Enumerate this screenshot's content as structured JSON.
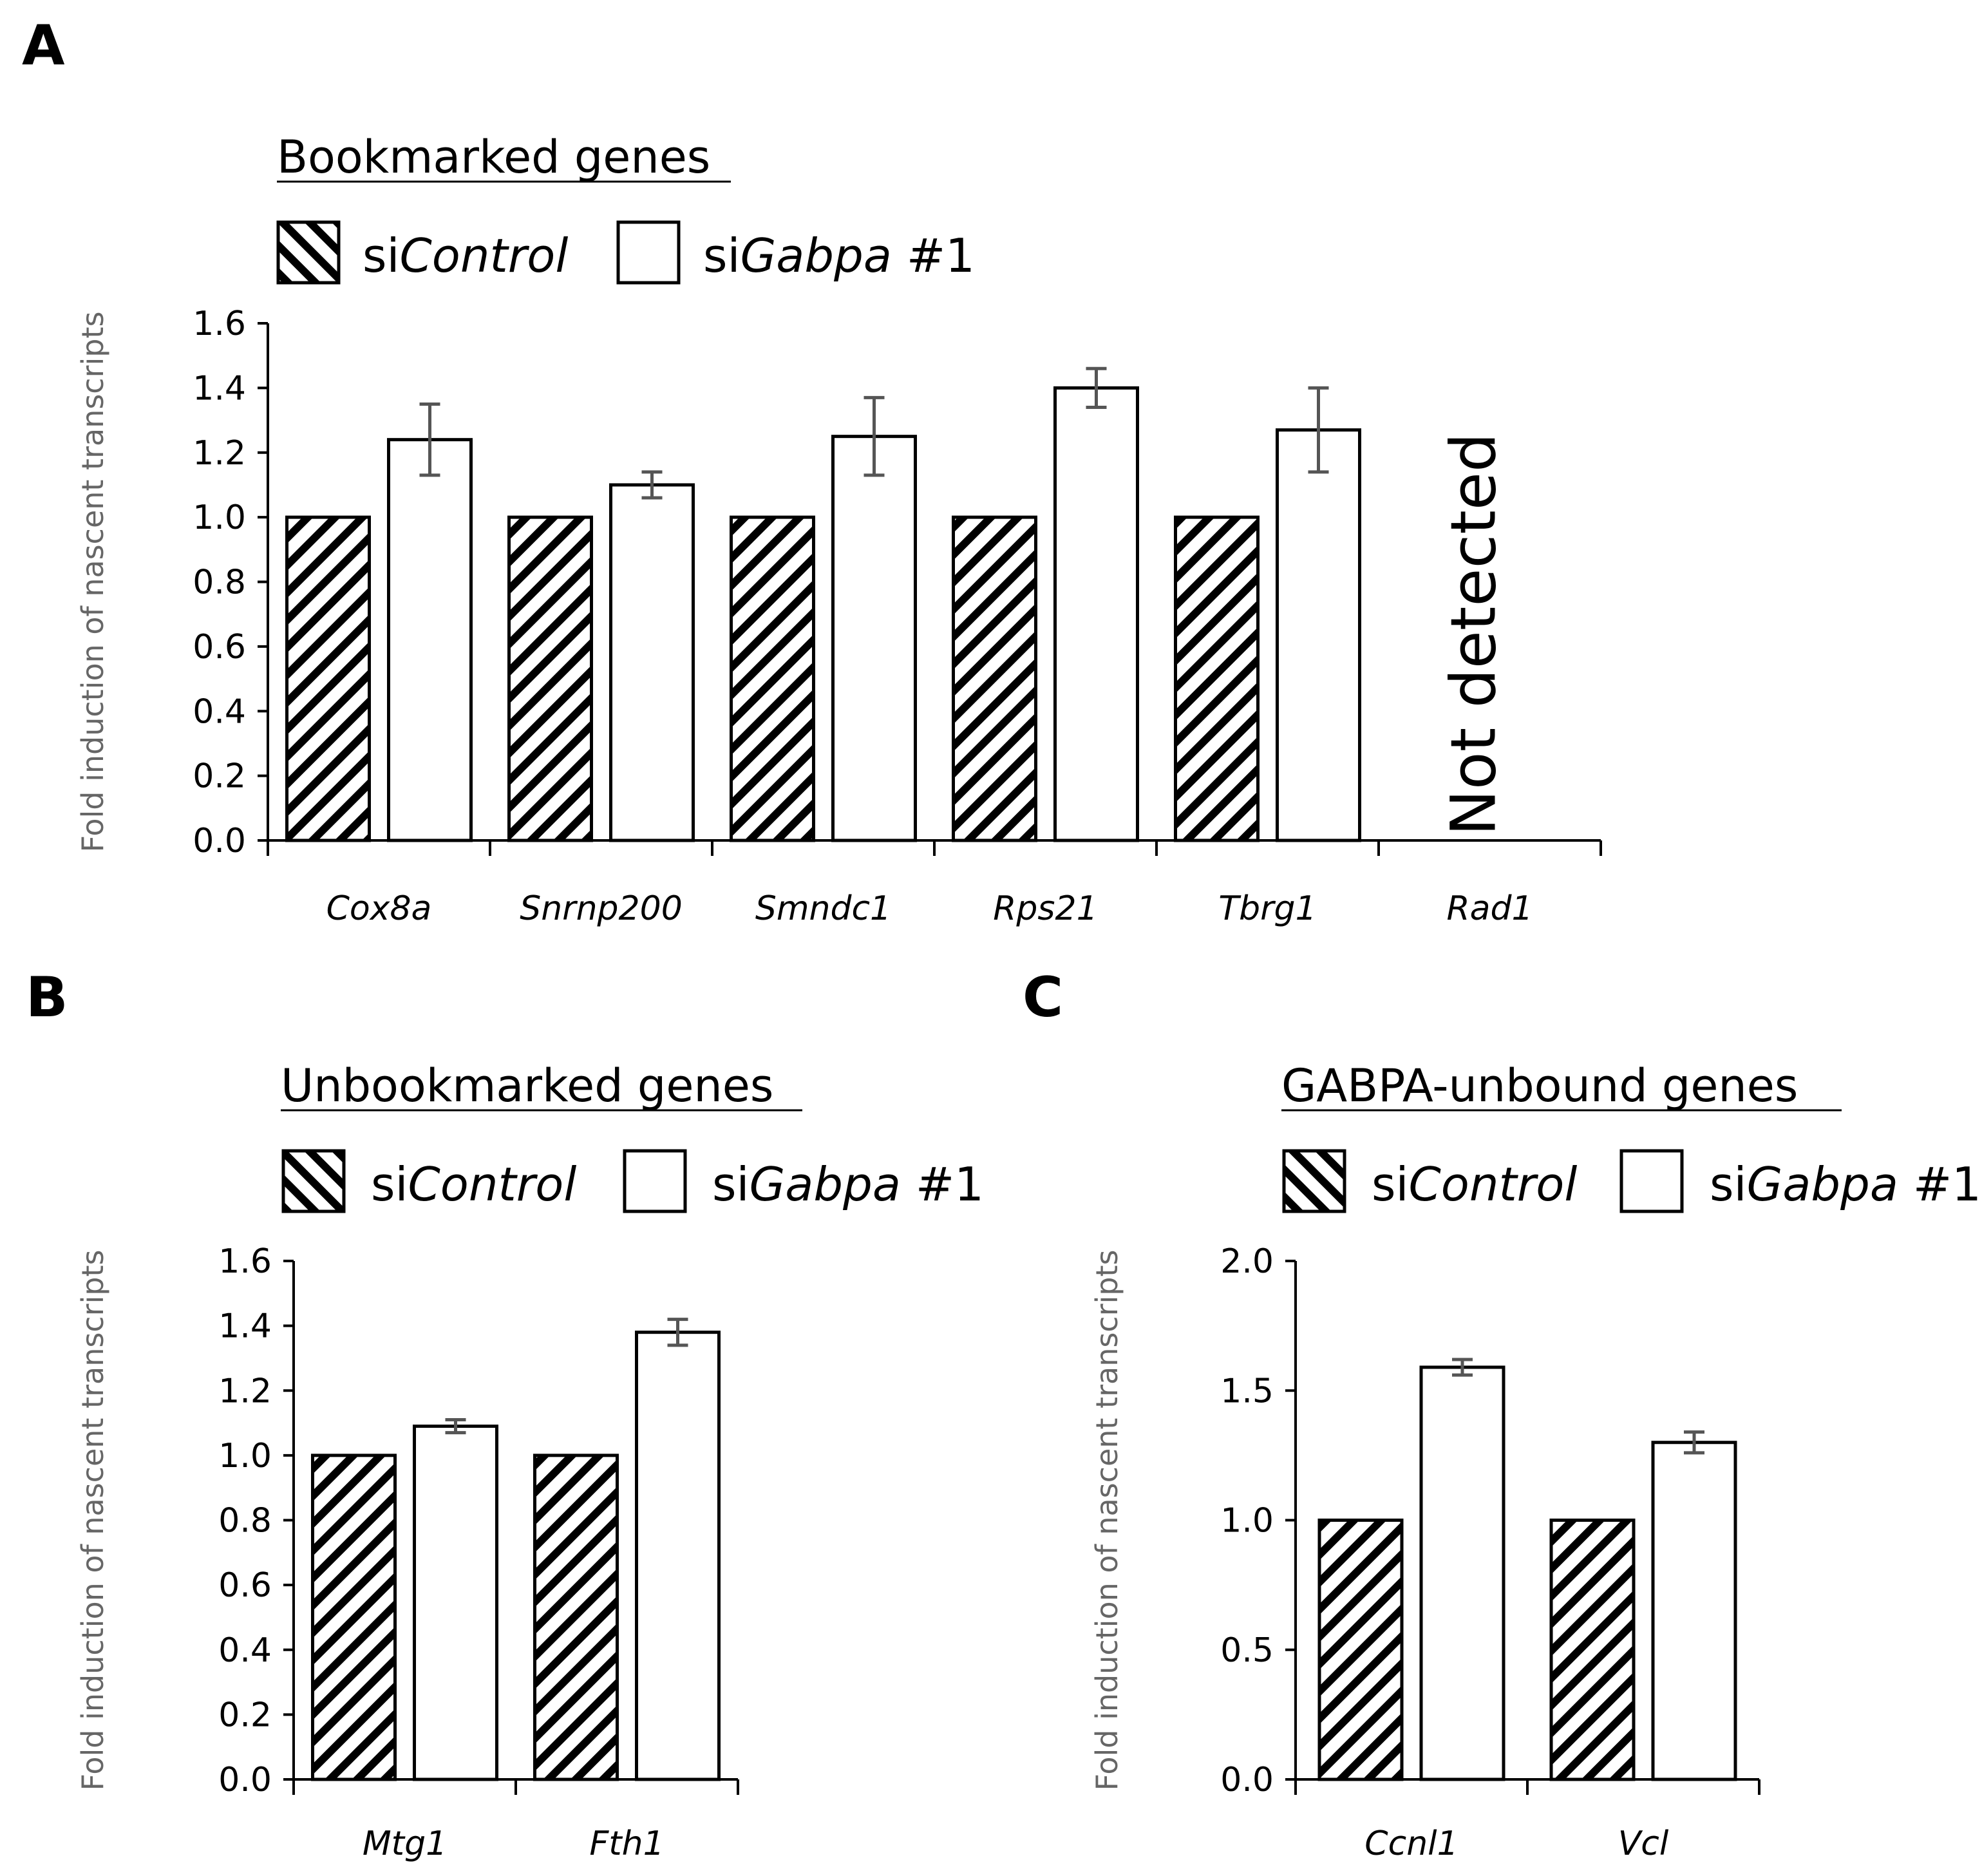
{
  "figure": {
    "legend": {
      "hatched_prefix": "si",
      "hatched_italic": "Control",
      "open_prefix": "si",
      "open_italic": "Gabpa",
      "open_suffix": " #1"
    },
    "colors": {
      "bar_outline": "#000000",
      "hatch": "#000000",
      "error_bar": "#555555",
      "axis_label": "#666666"
    }
  },
  "chart_data": [
    {
      "panel": "A",
      "type": "bar",
      "title": "Bookmarked genes",
      "ylabel": "Fold induction of nascent transcripts",
      "ylim": [
        0,
        1.6
      ],
      "yticks": [
        "0.0",
        "0.2",
        "0.4",
        "0.6",
        "0.8",
        "1.0",
        "1.2",
        "1.4",
        "1.6"
      ],
      "ytick_values": [
        0,
        0.2,
        0.4,
        0.6,
        0.8,
        1.0,
        1.2,
        1.4,
        1.6
      ],
      "categories": [
        "Cox8a",
        "Snrnp200",
        "Smndc1",
        "Rps21",
        "Tbrg1",
        "Rad1"
      ],
      "series": [
        {
          "name": "siControl",
          "style": "hatched",
          "values": [
            1.0,
            1.0,
            1.0,
            1.0,
            1.0,
            null
          ],
          "errors": [
            0,
            0,
            0,
            0,
            0,
            null
          ]
        },
        {
          "name": "siGabpa #1",
          "style": "open",
          "values": [
            1.24,
            1.1,
            1.25,
            1.4,
            1.27,
            null
          ],
          "errors": [
            0.11,
            0.04,
            0.12,
            0.06,
            0.13,
            null
          ]
        }
      ],
      "annotations": [
        {
          "category": "Rad1",
          "text": "Not detected"
        }
      ]
    },
    {
      "panel": "B",
      "type": "bar",
      "title": "Unbookmarked genes",
      "ylabel": "Fold induction of nascent transcripts",
      "ylim": [
        0,
        1.6
      ],
      "yticks": [
        "0.0",
        "0.2",
        "0.4",
        "0.6",
        "0.8",
        "1.0",
        "1.2",
        "1.4",
        "1.6"
      ],
      "ytick_values": [
        0,
        0.2,
        0.4,
        0.6,
        0.8,
        1.0,
        1.2,
        1.4,
        1.6
      ],
      "categories": [
        "Mtg1",
        "Fth1"
      ],
      "series": [
        {
          "name": "siControl",
          "style": "hatched",
          "values": [
            1.0,
            1.0
          ],
          "errors": [
            0,
            0
          ]
        },
        {
          "name": "siGabpa #1",
          "style": "open",
          "values": [
            1.09,
            1.38
          ],
          "errors": [
            0.02,
            0.04
          ]
        }
      ],
      "annotations": []
    },
    {
      "panel": "C",
      "type": "bar",
      "title": "GABPA-unbound genes",
      "ylabel": "Fold induction of nascent transcripts",
      "ylim": [
        0,
        2.0
      ],
      "yticks": [
        "0.0",
        "0.5",
        "1.0",
        "1.5",
        "2.0"
      ],
      "ytick_values": [
        0,
        0.5,
        1.0,
        1.5,
        2.0
      ],
      "categories": [
        "Ccnl1",
        "Vcl"
      ],
      "series": [
        {
          "name": "siControl",
          "style": "hatched",
          "values": [
            1.0,
            1.0
          ],
          "errors": [
            0,
            0
          ]
        },
        {
          "name": "siGabpa #1",
          "style": "open",
          "values": [
            1.59,
            1.3
          ],
          "errors": [
            0.03,
            0.04
          ]
        }
      ],
      "annotations": []
    }
  ]
}
